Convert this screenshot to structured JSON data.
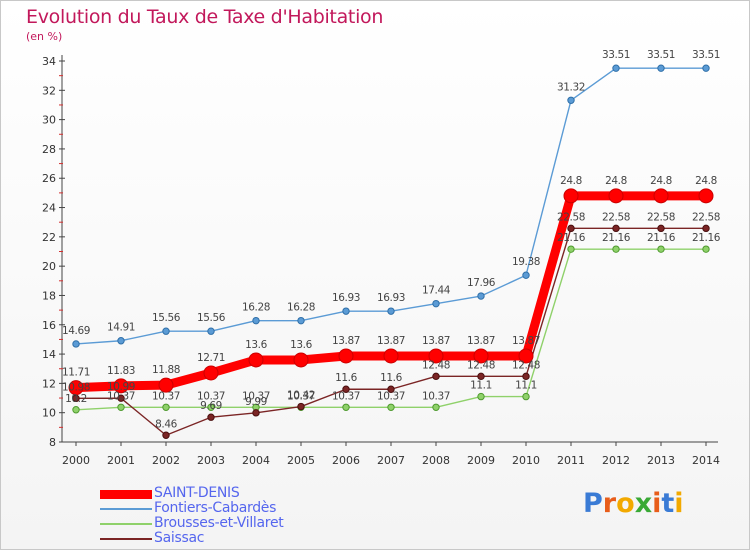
{
  "header": {
    "title": "Evolution du Taux de Taxe d'Habitation",
    "unit": "(en %)"
  },
  "logo": {
    "text": "Proxiti",
    "colors": [
      "#3a7bd5",
      "#e85d1a",
      "#f2a900",
      "#39a935",
      "#e85d1a",
      "#3a7bd5",
      "#f2a900"
    ]
  },
  "chart_data": {
    "type": "line",
    "title": "Evolution du Taux de Taxe d'Habitation",
    "ylabel": "(en %)",
    "xlabel": "",
    "x": [
      "2000",
      "2001",
      "2002",
      "2003",
      "2004",
      "2005",
      "2006",
      "2007",
      "2008",
      "2009",
      "2010",
      "2011",
      "2012",
      "2013",
      "2014"
    ],
    "ylim": [
      8,
      34
    ],
    "yticks": [
      8,
      10,
      12,
      14,
      16,
      18,
      20,
      22,
      24,
      26,
      28,
      30,
      32,
      34
    ],
    "grid": false,
    "legend_position": "bottom-left",
    "series": [
      {
        "name": "SAINT-DENIS",
        "color": "#ff0000",
        "values": [
          11.71,
          11.83,
          11.88,
          12.71,
          13.6,
          13.6,
          13.87,
          13.87,
          13.87,
          13.87,
          13.87,
          24.8,
          24.8,
          24.8,
          24.8
        ],
        "labels": [
          "11.71",
          "11.83",
          "11.88",
          "12.71",
          "13.6",
          "13.6",
          "13.87",
          "13.87",
          "13.87",
          "13.87",
          "13.87",
          "24.8",
          "24.8",
          "24.8",
          "24.8"
        ]
      },
      {
        "name": "Fontiers-Cabardès",
        "color": "#5b9bd5",
        "values": [
          14.69,
          14.91,
          15.56,
          15.56,
          16.28,
          16.28,
          16.93,
          16.93,
          17.44,
          17.96,
          19.38,
          31.32,
          33.51,
          33.51,
          33.51
        ],
        "labels": [
          "14.69",
          "14.91",
          "15.56",
          "15.56",
          "16.28",
          "16.28",
          "16.93",
          "16.93",
          "17.44",
          "17.96",
          "19.38",
          "31.32",
          "33.51",
          "33.51",
          "33.51"
        ]
      },
      {
        "name": "Brousses-et-Villaret",
        "color": "#8fd16a",
        "values": [
          10.2,
          10.37,
          10.37,
          10.37,
          10.37,
          10.37,
          10.37,
          10.37,
          10.37,
          11.1,
          11.1,
          21.16,
          21.16,
          21.16,
          21.16
        ],
        "labels": [
          "10.2",
          "10.37",
          "10.37",
          "10.37",
          "10.37",
          "10.37",
          "10.37",
          "10.37",
          "10.37",
          "11.1",
          "11.1",
          "21.16",
          "21.16",
          "21.16",
          "21.16"
        ]
      },
      {
        "name": "Saissac",
        "color": "#7b2525",
        "values": [
          10.98,
          10.99,
          8.46,
          9.69,
          9.99,
          10.42,
          11.6,
          11.6,
          12.48,
          12.48,
          12.48,
          22.58,
          22.58,
          22.58,
          22.58
        ],
        "labels": [
          "10.98",
          "10.99",
          "8.46",
          "9.69",
          "9.99",
          "10.42",
          "11.6",
          "11.6",
          "12.48",
          "12.48",
          "12.48",
          "22.58",
          "22.58",
          "22.58",
          "22.58"
        ]
      }
    ]
  }
}
